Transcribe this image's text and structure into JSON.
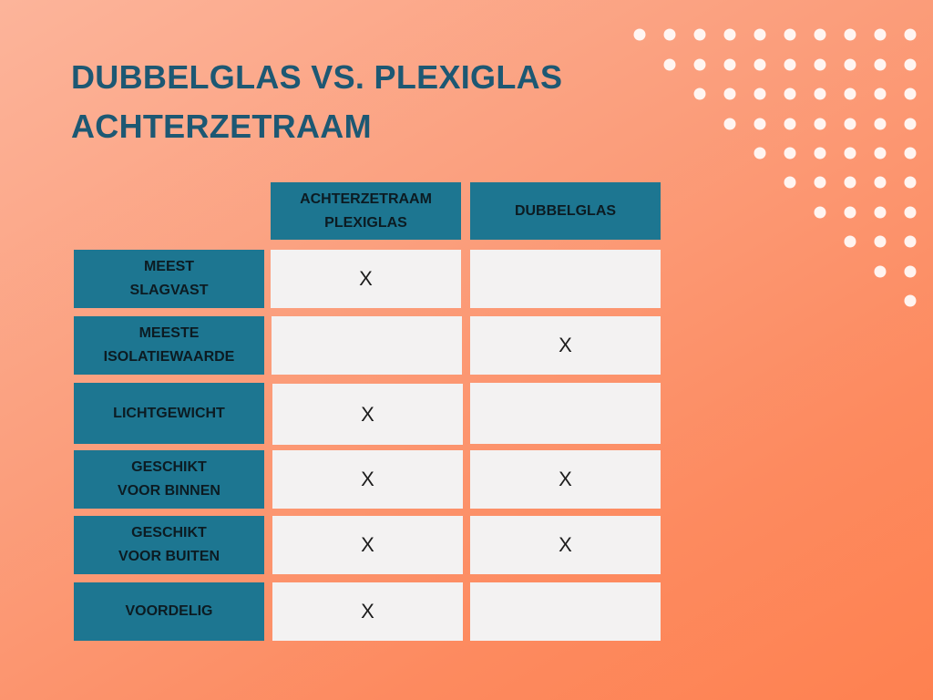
{
  "title": {
    "line1": "DUBBELGLAS VS. PLEXIGLAS",
    "line2": "ACHTERZETRAAM"
  },
  "colors": {
    "accent": "#1d7691",
    "title": "#1d5873",
    "cell": "#f3f2f2"
  },
  "table": {
    "columns": [
      "ACHTERZETRAAM\nPLEXIGLAS",
      "DUBBELGLAS"
    ],
    "rows": [
      {
        "label": "MEEST\nSLAGVAST",
        "plexiglas": "X",
        "dubbelglas": ""
      },
      {
        "label": "MEESTE\nISOLATIEWAARDE",
        "plexiglas": "",
        "dubbelglas": "X"
      },
      {
        "label": "LICHTGEWICHT",
        "plexiglas": "X",
        "dubbelglas": ""
      },
      {
        "label": "GESCHIKT\nVOOR BINNEN",
        "plexiglas": "X",
        "dubbelglas": "X"
      },
      {
        "label": "GESCHIKT\nVOOR BUITEN",
        "plexiglas": "X",
        "dubbelglas": "X"
      },
      {
        "label": "VOORDELIG",
        "plexiglas": "X",
        "dubbelglas": ""
      }
    ]
  }
}
